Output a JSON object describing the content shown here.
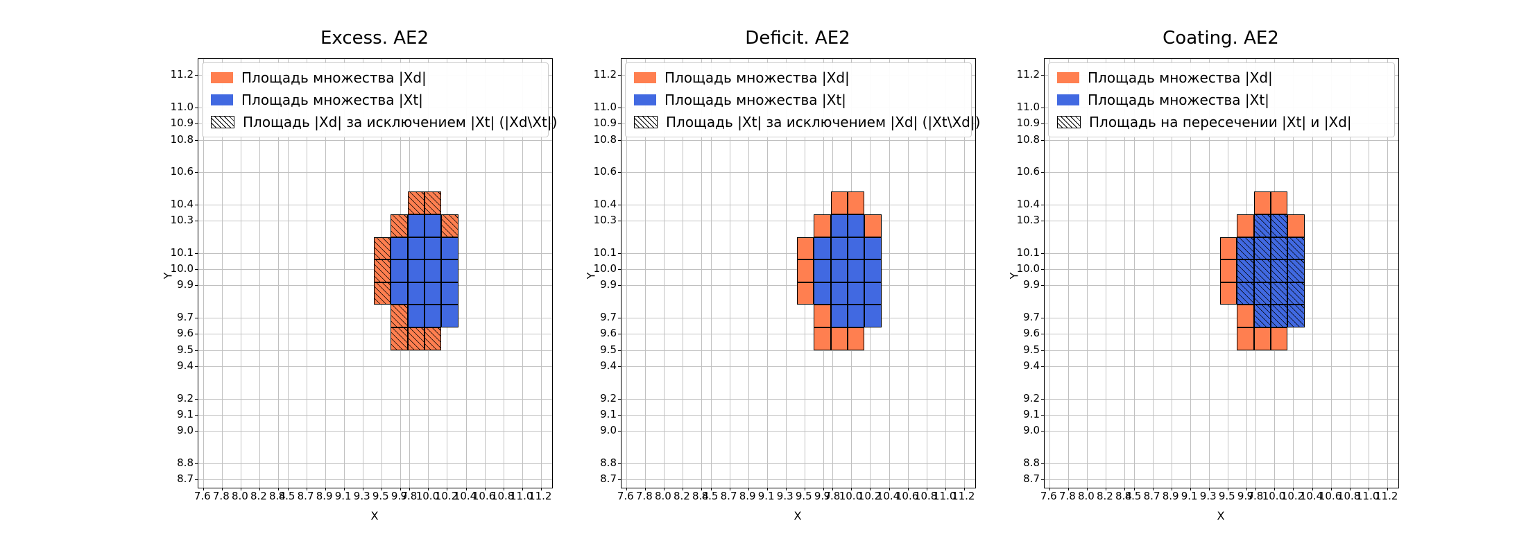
{
  "figure": {
    "background": "#ffffff"
  },
  "chart_data": {
    "type": "heatmap",
    "xlabel": "X",
    "ylabel": "Y",
    "x_range": [
      7.55,
      11.32
    ],
    "y_range": [
      8.65,
      11.3
    ],
    "x_ticks": [
      7.6,
      7.8,
      8.0,
      8.2,
      8.4,
      8.5,
      8.7,
      8.9,
      9.1,
      9.3,
      9.5,
      9.7,
      9.8,
      10.0,
      10.2,
      10.4,
      10.6,
      10.8,
      11.0,
      11.2
    ],
    "y_ticks": [
      8.7,
      8.8,
      9.0,
      9.1,
      9.2,
      9.4,
      9.5,
      9.6,
      9.7,
      9.9,
      10.0,
      10.1,
      10.3,
      10.4,
      10.6,
      10.8,
      10.9,
      11.0,
      11.2
    ],
    "colors": {
      "xd": "#ff7f50",
      "xt": "#4169e1",
      "grid": "#c0c0c0",
      "spine": "#000000"
    },
    "cell_w": 0.18,
    "cell_h": 0.14,
    "cells": [
      [
        9.78,
        10.34,
        "xd"
      ],
      [
        9.96,
        10.34,
        "xd"
      ],
      [
        9.6,
        10.2,
        "xd"
      ],
      [
        9.78,
        10.2,
        "xt"
      ],
      [
        9.96,
        10.2,
        "xt"
      ],
      [
        10.14,
        10.2,
        "xd"
      ],
      [
        9.42,
        10.06,
        "xd"
      ],
      [
        9.6,
        10.06,
        "xt"
      ],
      [
        9.78,
        10.06,
        "xt"
      ],
      [
        9.96,
        10.06,
        "xt"
      ],
      [
        10.14,
        10.06,
        "xt"
      ],
      [
        9.42,
        9.92,
        "xd"
      ],
      [
        9.6,
        9.92,
        "xt"
      ],
      [
        9.78,
        9.92,
        "xt"
      ],
      [
        9.96,
        9.92,
        "xt"
      ],
      [
        10.14,
        9.92,
        "xt"
      ],
      [
        9.42,
        9.78,
        "xd"
      ],
      [
        9.6,
        9.78,
        "xt"
      ],
      [
        9.78,
        9.78,
        "xt"
      ],
      [
        9.96,
        9.78,
        "xt"
      ],
      [
        10.14,
        9.78,
        "xt"
      ],
      [
        9.6,
        9.64,
        "xd"
      ],
      [
        9.78,
        9.64,
        "xt"
      ],
      [
        9.96,
        9.64,
        "xt"
      ],
      [
        10.14,
        9.64,
        "xt"
      ],
      [
        9.6,
        9.5,
        "xd"
      ],
      [
        9.78,
        9.5,
        "xd"
      ],
      [
        9.96,
        9.5,
        "xd"
      ]
    ],
    "subplots": [
      {
        "title": "Excess. AE2",
        "hatch_on": "xd",
        "legend": [
          {
            "label": "Площадь множества |Xd|",
            "patch": "xd"
          },
          {
            "label": "Площадь множества  |Xt|",
            "patch": "xt"
          },
          {
            "label": "Площадь |Xd| за исключением |Xt| (|Xd\\Xt|)",
            "patch": "hatch"
          }
        ]
      },
      {
        "title": "Deficit. AE2",
        "hatch_on": "none",
        "legend": [
          {
            "label": "Площадь множества |Xd|",
            "patch": "xd"
          },
          {
            "label": "Площадь множества  |Xt|",
            "patch": "xt"
          },
          {
            "label": "Площадь |Xt| за исключением |Xd| (|Xt\\Xd|)",
            "patch": "hatch"
          }
        ]
      },
      {
        "title": "Coating. AE2",
        "hatch_on": "xt",
        "legend": [
          {
            "label": "Площадь множества |Xd|",
            "patch": "xd"
          },
          {
            "label": "Площадь множества  |Xt|",
            "patch": "xt"
          },
          {
            "label": "Площадь на пересечении |Xt| и |Xd|",
            "patch": "hatch"
          }
        ]
      }
    ]
  }
}
